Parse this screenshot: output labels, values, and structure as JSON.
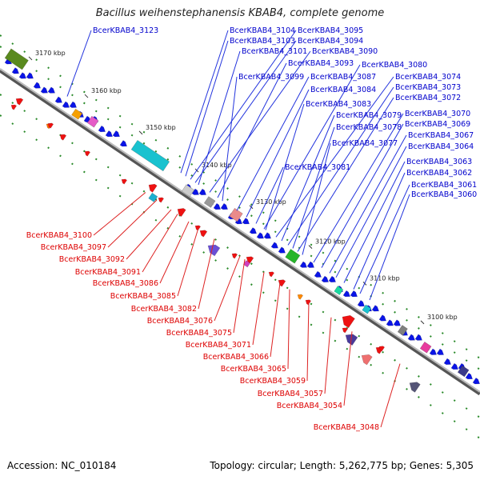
{
  "title": "Bacillus weihenstephanensis KBAB4, complete genome",
  "accession": "Accession: NC_010184",
  "summary": "Topology: circular; Length: 5,262,775 bp; Genes: 5,305",
  "colors": {
    "forward_label": "#0000cc",
    "reverse_label": "#dd0000",
    "backbone": "#999999",
    "tick": "#228b22"
  },
  "ticks": [
    "3170 kbp",
    "3160 kbp",
    "3150 kbp",
    "3140 kbp",
    "3130 kbp",
    "3120 kbp",
    "3110 kbp",
    "3100 kbp"
  ],
  "forward_genes": [
    "BcerKBAB4_3123",
    "BcerKBAB4_3104",
    "BcerKBAB4_3095",
    "BcerKBAB4_3103",
    "BcerKBAB4_3094",
    "BcerKBAB4_3101",
    "BcerKBAB4_3090",
    "BcerKBAB4_3093",
    "BcerKBAB4_3080",
    "BcerKBAB4_3099",
    "BcerKBAB4_3087",
    "BcerKBAB4_3074",
    "BcerKBAB4_3084",
    "BcerKBAB4_3073",
    "BcerKBAB4_3072",
    "BcerKBAB4_3083",
    "BcerKBAB4_3079",
    "BcerKBAB4_3070",
    "BcerKBAB4_3078",
    "BcerKBAB4_3069",
    "BcerKBAB4_3077",
    "BcerKBAB4_3067",
    "BcerKBAB4_3064",
    "BcerKBAB4_3081",
    "BcerKBAB4_3063",
    "BcerKBAB4_3062",
    "BcerKBAB4_3061",
    "BcerKBAB4_3060"
  ],
  "reverse_genes": [
    "BcerKBAB4_3100",
    "BcerKBAB4_3097",
    "BcerKBAB4_3092",
    "BcerKBAB4_3091",
    "BcerKBAB4_3086",
    "BcerKBAB4_3085",
    "BcerKBAB4_3082",
    "BcerKBAB4_3076",
    "BcerKBAB4_3075",
    "BcerKBAB4_3071",
    "BcerKBAB4_3066",
    "BcerKBAB4_3065",
    "BcerKBAB4_3059",
    "BcerKBAB4_3057",
    "BcerKBAB4_3054",
    "BcerKBAB4_3048"
  ]
}
